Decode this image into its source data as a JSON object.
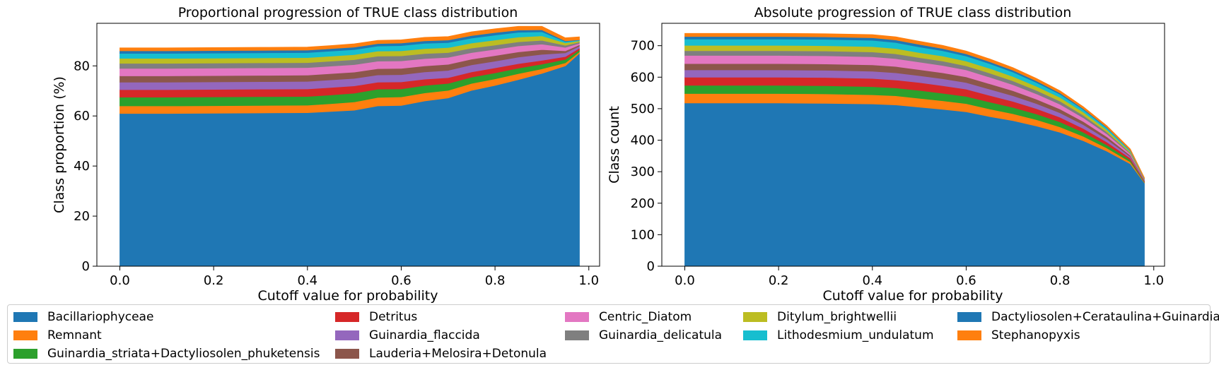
{
  "colors": [
    "#1f77b4",
    "#ff7f0e",
    "#2ca02c",
    "#d62728",
    "#9467bd",
    "#8c564b",
    "#e377c2",
    "#7f7f7f",
    "#bcbd22",
    "#17becf",
    "#1f77b4",
    "#ff7f0e"
  ],
  "legend": {
    "entries": [
      "Bacillariophyceae",
      "Remnant",
      "Guinardia_striata+Dactyliosolen_phuketensis",
      "Detritus",
      "Guinardia_flaccida",
      "Lauderia+Melosira+Detonula",
      "Centric_Diatom",
      "Guinardia_delicatula",
      "Ditylum_brightwellii",
      "Lithodesmium_undulatum",
      "Dactyliosolen+Cerataulina+Guinardia",
      "Stephanopyxis"
    ]
  },
  "chart_data": [
    {
      "type": "area",
      "title": "Proportional progression of TRUE class distribution",
      "xlabel": "Cutoff value for probability",
      "ylabel": "Class proportion (%)",
      "xlim": [
        -0.049,
        1.023
      ],
      "ylim": [
        0,
        97
      ],
      "xticks": [
        "0.0",
        "0.2",
        "0.4",
        "0.6",
        "0.8",
        "1.0"
      ],
      "yticks": [
        "0",
        "20",
        "40",
        "60",
        "80"
      ],
      "x": [
        0,
        0.1,
        0.2,
        0.3,
        0.4,
        0.45,
        0.5,
        0.55,
        0.6,
        0.65,
        0.7,
        0.75,
        0.8,
        0.85,
        0.9,
        0.95,
        0.98
      ],
      "stacked": true,
      "series": [
        {
          "values": [
            61.0,
            61.0,
            61.1,
            61.2,
            61.3,
            61.8,
            62.3,
            64.0,
            64.2,
            66.0,
            67.2,
            70.2,
            72.2,
            74.5,
            77.0,
            80.0,
            85.0
          ]
        },
        {
          "values": [
            3.0,
            3.0,
            3.0,
            3.0,
            3.0,
            3.1,
            3.3,
            3.4,
            3.4,
            3.2,
            3.0,
            2.8,
            2.6,
            2.4,
            1.8,
            1.2,
            0.6
          ]
        },
        {
          "values": [
            3.5,
            3.5,
            3.5,
            3.5,
            3.5,
            3.5,
            3.5,
            3.3,
            3.2,
            3.0,
            2.8,
            2.5,
            2.4,
            2.2,
            1.9,
            1.4,
            0.8
          ]
        },
        {
          "values": [
            3.0,
            3.0,
            3.0,
            3.0,
            3.0,
            3.0,
            2.9,
            2.8,
            2.8,
            2.5,
            2.3,
            2.1,
            2.0,
            1.8,
            1.5,
            1.1,
            0.7
          ]
        },
        {
          "values": [
            3.0,
            3.0,
            3.0,
            3.0,
            3.0,
            3.0,
            3.0,
            2.9,
            2.9,
            2.9,
            2.9,
            2.8,
            2.7,
            2.6,
            2.4,
            1.5,
            0.8
          ]
        },
        {
          "values": [
            2.5,
            2.5,
            2.5,
            2.5,
            2.5,
            2.5,
            2.5,
            2.5,
            2.5,
            2.4,
            2.4,
            2.3,
            2.2,
            2.1,
            1.9,
            0.8,
            0.5
          ]
        },
        {
          "values": [
            3.0,
            3.0,
            3.0,
            3.0,
            3.0,
            3.0,
            3.0,
            3.0,
            3.0,
            2.9,
            2.8,
            2.6,
            2.5,
            2.4,
            2.2,
            1.4,
            0.6
          ]
        },
        {
          "values": [
            2.0,
            2.0,
            2.0,
            2.0,
            2.0,
            2.0,
            2.0,
            2.0,
            2.0,
            2.0,
            1.9,
            1.8,
            1.7,
            1.6,
            1.5,
            0.8,
            0.5
          ]
        },
        {
          "values": [
            2.0,
            2.0,
            2.0,
            2.0,
            2.0,
            2.0,
            2.0,
            2.0,
            2.0,
            2.0,
            2.0,
            2.0,
            2.0,
            1.9,
            1.8,
            1.0,
            0.5
          ]
        },
        {
          "values": [
            2.0,
            2.0,
            2.0,
            2.0,
            2.0,
            2.0,
            2.0,
            2.0,
            2.1,
            2.1,
            2.0,
            2.0,
            2.0,
            1.9,
            1.6,
            0.5,
            0.3
          ]
        },
        {
          "values": [
            1.0,
            1.0,
            1.0,
            1.0,
            1.0,
            1.0,
            1.0,
            1.0,
            1.0,
            1.0,
            1.0,
            1.0,
            1.0,
            0.9,
            0.8,
            0.3,
            0.1
          ]
        },
        {
          "values": [
            1.2,
            1.2,
            1.2,
            1.2,
            1.2,
            1.2,
            1.3,
            1.3,
            1.3,
            1.4,
            1.4,
            1.5,
            1.5,
            1.5,
            1.4,
            1.2,
            1.2
          ]
        }
      ]
    },
    {
      "type": "area",
      "title": "Absolute progression of TRUE class distribution",
      "xlabel": "Cutoff value for probability",
      "ylabel": "Class count",
      "xlim": [
        -0.049,
        1.023
      ],
      "ylim": [
        0,
        771
      ],
      "xticks": [
        "0.0",
        "0.2",
        "0.4",
        "0.6",
        "0.8",
        "1.0"
      ],
      "yticks": [
        "0",
        "100",
        "200",
        "300",
        "400",
        "500",
        "600",
        "700"
      ],
      "x": [
        0,
        0.1,
        0.2,
        0.3,
        0.4,
        0.45,
        0.5,
        0.55,
        0.6,
        0.65,
        0.7,
        0.75,
        0.8,
        0.85,
        0.9,
        0.95,
        0.98
      ],
      "stacked": true,
      "series": [
        {
          "values": [
            518,
            518,
            518,
            517,
            515,
            512,
            505,
            498,
            490,
            475,
            462,
            445,
            425,
            398,
            365,
            325,
            265
          ]
        },
        {
          "values": [
            30,
            30,
            30,
            30,
            29,
            29,
            28,
            27,
            26,
            24,
            22,
            20,
            17,
            14,
            10,
            6,
            2
          ]
        },
        {
          "values": [
            26,
            26,
            26,
            26,
            26,
            25,
            25,
            24,
            23,
            22,
            20,
            18,
            16,
            13,
            10,
            6,
            2
          ]
        },
        {
          "values": [
            26,
            26,
            26,
            26,
            26,
            25,
            25,
            24,
            23,
            21,
            19,
            17,
            15,
            12,
            9,
            6,
            2
          ]
        },
        {
          "values": [
            23,
            23,
            23,
            23,
            23,
            23,
            22,
            22,
            21,
            20,
            18,
            16,
            14,
            12,
            9,
            5,
            2
          ]
        },
        {
          "values": [
            20,
            20,
            20,
            20,
            20,
            20,
            19,
            19,
            18,
            17,
            16,
            14,
            12,
            10,
            8,
            4,
            1
          ]
        },
        {
          "values": [
            26,
            26,
            26,
            26,
            26,
            25,
            24,
            23,
            22,
            21,
            19,
            17,
            15,
            12,
            9,
            5,
            1
          ]
        },
        {
          "values": [
            15,
            15,
            15,
            15,
            15,
            15,
            14,
            14,
            13,
            13,
            12,
            11,
            10,
            8,
            6,
            3,
            1
          ]
        },
        {
          "values": [
            17,
            17,
            17,
            17,
            17,
            17,
            16,
            16,
            15,
            15,
            14,
            13,
            12,
            10,
            7,
            4,
            1
          ]
        },
        {
          "values": [
            20,
            20,
            20,
            20,
            20,
            19,
            18,
            17,
            16,
            15,
            14,
            12,
            10,
            8,
            6,
            3,
            1
          ]
        },
        {
          "values": [
            8,
            8,
            8,
            8,
            8,
            8,
            8,
            7,
            7,
            6,
            6,
            5,
            4,
            3,
            2,
            1,
            0
          ]
        },
        {
          "values": [
            10,
            10,
            10,
            10,
            10,
            10,
            10,
            10,
            9,
            9,
            8,
            8,
            7,
            6,
            5,
            4,
            3
          ]
        }
      ]
    }
  ]
}
